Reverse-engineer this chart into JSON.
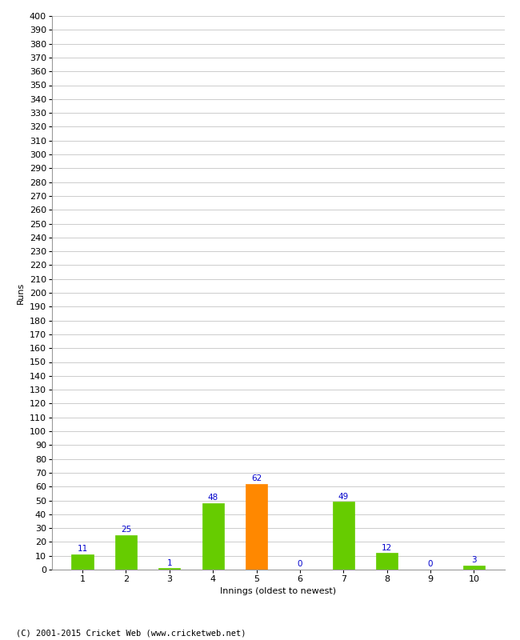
{
  "innings": [
    1,
    2,
    3,
    4,
    5,
    6,
    7,
    8,
    9,
    10
  ],
  "runs": [
    11,
    25,
    1,
    48,
    62,
    0,
    49,
    12,
    0,
    3
  ],
  "bar_colors": [
    "#66cc00",
    "#66cc00",
    "#66cc00",
    "#66cc00",
    "#ff8800",
    "#66cc00",
    "#66cc00",
    "#66cc00",
    "#66cc00",
    "#66cc00"
  ],
  "xlabel": "Innings (oldest to newest)",
  "ylabel": "Runs",
  "ylim": [
    0,
    400
  ],
  "yticks": [
    0,
    10,
    20,
    30,
    40,
    50,
    60,
    70,
    80,
    90,
    100,
    110,
    120,
    130,
    140,
    150,
    160,
    170,
    180,
    190,
    200,
    210,
    220,
    230,
    240,
    250,
    260,
    270,
    280,
    290,
    300,
    310,
    320,
    330,
    340,
    350,
    360,
    370,
    380,
    390,
    400
  ],
  "footer": "(C) 2001-2015 Cricket Web (www.cricketweb.net)",
  "background_color": "#ffffff",
  "grid_color": "#cccccc",
  "label_color": "#0000cc",
  "label_fontsize": 7.5,
  "axis_fontsize": 8,
  "ylabel_fontsize": 8,
  "xlabel_fontsize": 8,
  "footer_fontsize": 7.5,
  "bar_width": 0.5
}
